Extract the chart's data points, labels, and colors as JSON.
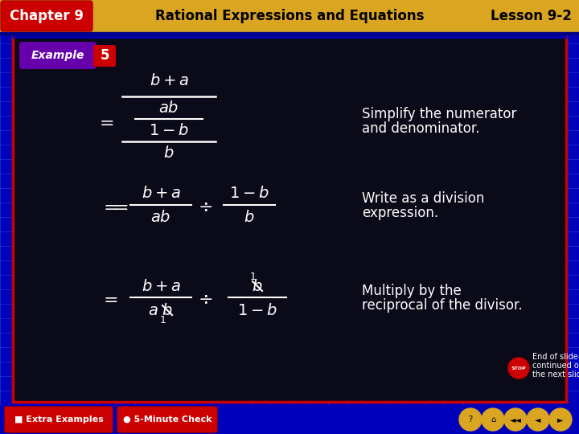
{
  "header_bg": "#DAA520",
  "chapter_bg": "#CC0000",
  "chapter_text": "Chapter 9",
  "header_center": "Rational Expressions and Equations",
  "lesson_text": "Lesson 9-2",
  "main_bg": "#0A0A18",
  "footer_bg": "#0000BB",
  "example_bg": "#6600AA",
  "example_num_bg": "#CC0000",
  "math_color": "#FFFFFF",
  "annotations": [
    "Simplify the numerator\nand denominator.",
    "Write as a division\nexpression.",
    "Multiply by the\nreciprocal of the divisor."
  ],
  "end_text": "End of slide—\ncontinued on\nthe next slide"
}
